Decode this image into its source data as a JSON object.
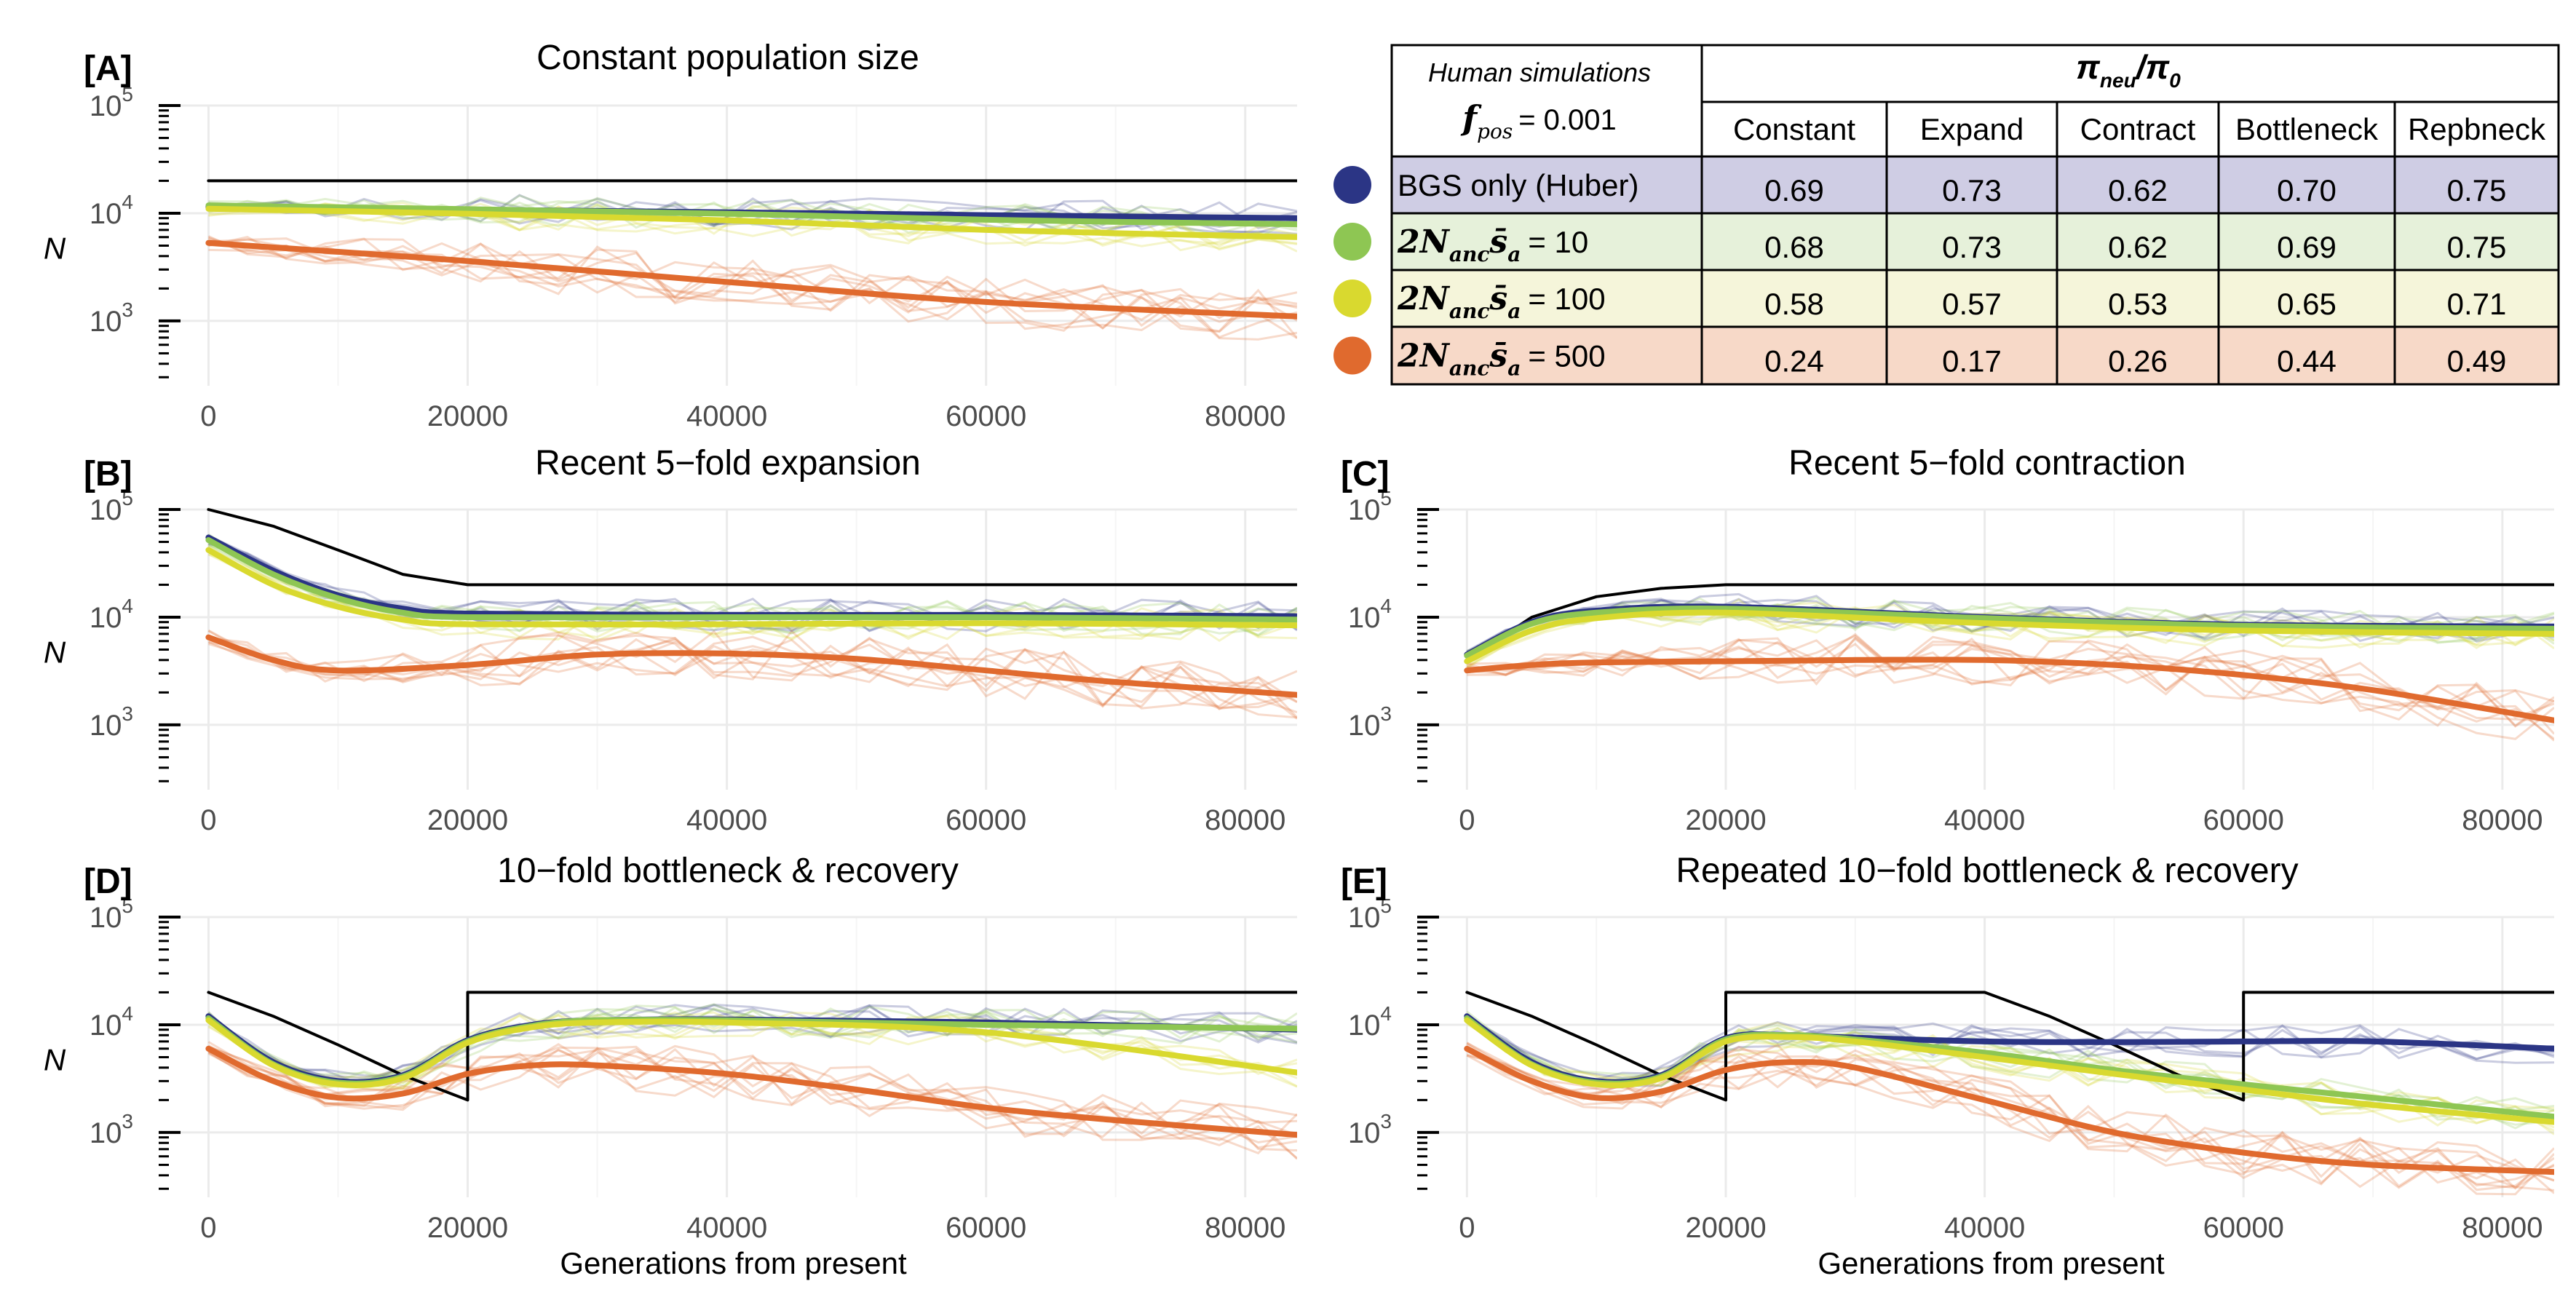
{
  "colors": {
    "bgs": "#2b3585",
    "s10": "#8ec653",
    "s100": "#d9d92f",
    "s500": "#e06a2e",
    "demography": "#000000",
    "row_bgs": "#cfcde4",
    "row_s10": "#e6f1da",
    "row_s100": "#f5f5da",
    "row_s500": "#f7d9c8"
  },
  "table": {
    "header_italic": "Human simulations",
    "fpos_symbol": "f",
    "fpos_sub": "pos",
    "fpos_value": "= 0.001",
    "ratio_num": "π",
    "ratio_num_sub": "neu",
    "ratio_sep": "/π",
    "ratio_den_sub": "0",
    "columns": [
      "Constant",
      "Expand",
      "Contract",
      "Bottleneck",
      "Repbneck"
    ],
    "rows": [
      {
        "key": "bgs",
        "label": "BGS only (Huber)",
        "values": [
          "0.69",
          "0.73",
          "0.62",
          "0.70",
          "0.75"
        ]
      },
      {
        "key": "s10",
        "label_main": "2N",
        "label_sub1": "anc",
        "label_mid": "s̄",
        "label_sub2": "a",
        "label_value": "= 10",
        "values": [
          "0.68",
          "0.73",
          "0.62",
          "0.69",
          "0.75"
        ]
      },
      {
        "key": "s100",
        "label_main": "2N",
        "label_sub1": "anc",
        "label_mid": "s̄",
        "label_sub2": "a",
        "label_value": "= 100",
        "values": [
          "0.58",
          "0.57",
          "0.53",
          "0.65",
          "0.71"
        ]
      },
      {
        "key": "s500",
        "label_main": "2N",
        "label_sub1": "anc",
        "label_mid": "s̄",
        "label_sub2": "a",
        "label_value": "= 500",
        "values": [
          "0.24",
          "0.17",
          "0.26",
          "0.44",
          "0.49"
        ]
      }
    ]
  },
  "chart_data": [
    {
      "id": "A",
      "label": "[A]",
      "title": "Constant population size",
      "type": "line",
      "xlabel": "",
      "ylabel": "N",
      "yscale": "log",
      "xlim": [
        -3000,
        84000
      ],
      "ylim": [
        250,
        100000
      ],
      "xticks": [
        0,
        20000,
        40000,
        60000,
        80000
      ],
      "series": [
        {
          "key": "demography",
          "x": [
            0,
            84000
          ],
          "y": [
            20000,
            20000
          ]
        },
        {
          "key": "bgs",
          "x": [
            0,
            20000,
            40000,
            60000,
            84000
          ],
          "y": [
            11500,
            10800,
            10200,
            9600,
            9000
          ]
        },
        {
          "key": "s10",
          "x": [
            0,
            20000,
            40000,
            60000,
            84000
          ],
          "y": [
            11800,
            10900,
            9900,
            8700,
            7900
          ]
        },
        {
          "key": "s100",
          "x": [
            0,
            20000,
            40000,
            60000,
            84000
          ],
          "y": [
            11000,
            9900,
            8600,
            7000,
            6000
          ]
        },
        {
          "key": "s500",
          "x": [
            0,
            20000,
            40000,
            60000,
            84000
          ],
          "y": [
            5300,
            3600,
            2300,
            1500,
            1100
          ]
        }
      ]
    },
    {
      "id": "B",
      "label": "[B]",
      "title": "Recent 5−fold expansion",
      "type": "line",
      "xlabel": "",
      "ylabel": "N",
      "yscale": "log",
      "xlim": [
        -3000,
        84000
      ],
      "ylim": [
        250,
        100000
      ],
      "xticks": [
        0,
        20000,
        40000,
        60000,
        80000
      ],
      "series": [
        {
          "key": "demography",
          "x": [
            0,
            5000,
            10000,
            15000,
            20000,
            84000
          ],
          "y": [
            100000,
            70000,
            42000,
            25000,
            20000,
            20000
          ]
        },
        {
          "key": "bgs",
          "x": [
            0,
            5000,
            10000,
            15000,
            20000,
            40000,
            60000,
            84000
          ],
          "y": [
            55000,
            27000,
            16000,
            12000,
            10800,
            10500,
            10500,
            10200
          ]
        },
        {
          "key": "s10",
          "x": [
            0,
            5000,
            10000,
            15000,
            20000,
            40000,
            60000,
            84000
          ],
          "y": [
            52000,
            25000,
            15000,
            11000,
            10000,
            10000,
            10000,
            9500
          ]
        },
        {
          "key": "s100",
          "x": [
            0,
            5000,
            10000,
            15000,
            20000,
            40000,
            60000,
            84000
          ],
          "y": [
            42000,
            20000,
            12500,
            9500,
            8600,
            8600,
            8800,
            8400
          ]
        },
        {
          "key": "s500",
          "x": [
            0,
            5000,
            10000,
            20000,
            30000,
            40000,
            50000,
            60000,
            70000,
            84000
          ],
          "y": [
            6500,
            4000,
            3200,
            3600,
            4500,
            4600,
            4100,
            3200,
            2500,
            1900
          ]
        }
      ]
    },
    {
      "id": "C",
      "label": "[C]",
      "title": "Recent 5−fold contraction",
      "type": "line",
      "xlabel": "",
      "ylabel": "",
      "yscale": "log",
      "xlim": [
        -3000,
        84000
      ],
      "ylim": [
        250,
        100000
      ],
      "xticks": [
        0,
        20000,
        40000,
        60000,
        80000
      ],
      "series": [
        {
          "key": "demography",
          "x": [
            0,
            5000,
            10000,
            15000,
            20000,
            84000
          ],
          "y": [
            4000,
            10000,
            15500,
            18500,
            20000,
            20000
          ]
        },
        {
          "key": "bgs",
          "x": [
            0,
            5000,
            10000,
            20000,
            40000,
            60000,
            84000
          ],
          "y": [
            4500,
            9000,
            11500,
            12500,
            10000,
            8500,
            8200
          ]
        },
        {
          "key": "s10",
          "x": [
            0,
            5000,
            10000,
            20000,
            40000,
            60000,
            84000
          ],
          "y": [
            4400,
            8700,
            11000,
            12000,
            9800,
            8300,
            7800
          ]
        },
        {
          "key": "s100",
          "x": [
            0,
            5000,
            10000,
            20000,
            40000,
            60000,
            84000
          ],
          "y": [
            3900,
            7500,
            9800,
            11000,
            8800,
            7500,
            7000
          ]
        },
        {
          "key": "s500",
          "x": [
            0,
            5000,
            10000,
            20000,
            30000,
            40000,
            50000,
            60000,
            70000,
            84000
          ],
          "y": [
            3200,
            3600,
            3800,
            3900,
            4000,
            4000,
            3600,
            2900,
            2100,
            1100
          ]
        }
      ]
    },
    {
      "id": "D",
      "label": "[D]",
      "title": "10−fold bottleneck & recovery",
      "type": "line",
      "xlabel": "Generations from present",
      "ylabel": "N",
      "yscale": "log",
      "xlim": [
        -3000,
        84000
      ],
      "ylim": [
        250,
        100000
      ],
      "xticks": [
        0,
        20000,
        40000,
        60000,
        80000
      ],
      "series": [
        {
          "key": "demography",
          "x": [
            0,
            5000,
            10000,
            15000,
            20000,
            20000,
            84000
          ],
          "y": [
            20000,
            12000,
            6500,
            3400,
            2000,
            20000,
            20000
          ]
        },
        {
          "key": "bgs",
          "x": [
            0,
            5000,
            10000,
            15000,
            20000,
            25000,
            30000,
            40000,
            60000,
            84000
          ],
          "y": [
            12000,
            4500,
            3000,
            3400,
            7200,
            10000,
            11000,
            11200,
            10500,
            9000
          ]
        },
        {
          "key": "s10",
          "x": [
            0,
            5000,
            10000,
            15000,
            20000,
            25000,
            30000,
            40000,
            60000,
            84000
          ],
          "y": [
            11500,
            4300,
            2900,
            3300,
            7000,
            9800,
            11000,
            11000,
            10000,
            9200
          ]
        },
        {
          "key": "s100",
          "x": [
            0,
            5000,
            10000,
            15000,
            20000,
            25000,
            30000,
            40000,
            60000,
            84000
          ],
          "y": [
            11000,
            4200,
            2800,
            3200,
            6800,
            9500,
            10500,
            10500,
            8500,
            3600
          ]
        },
        {
          "key": "s500",
          "x": [
            0,
            5000,
            10000,
            15000,
            20000,
            25000,
            30000,
            40000,
            50000,
            60000,
            70000,
            84000
          ],
          "y": [
            6000,
            3000,
            2100,
            2300,
            3500,
            4200,
            4200,
            3500,
            2500,
            1700,
            1300,
            950
          ]
        }
      ]
    },
    {
      "id": "E",
      "label": "[E]",
      "title": "Repeated 10−fold bottleneck & recovery",
      "type": "line",
      "xlabel": "Generations from present",
      "ylabel": "",
      "yscale": "log",
      "xlim": [
        -3000,
        84000
      ],
      "ylim": [
        250,
        100000
      ],
      "xticks": [
        0,
        20000,
        40000,
        60000,
        80000
      ],
      "series": [
        {
          "key": "demography",
          "x": [
            0,
            5000,
            10000,
            15000,
            20000,
            20000,
            40000,
            45000,
            50000,
            55000,
            60000,
            60000,
            84000
          ],
          "y": [
            20000,
            12000,
            6500,
            3400,
            2000,
            20000,
            20000,
            12000,
            6500,
            3400,
            2000,
            20000,
            20000
          ]
        },
        {
          "key": "bgs",
          "x": [
            0,
            5000,
            10000,
            15000,
            20000,
            25000,
            30000,
            40000,
            50000,
            60000,
            70000,
            84000
          ],
          "y": [
            12000,
            4500,
            3000,
            3400,
            7500,
            8000,
            7600,
            7000,
            6900,
            7000,
            7000,
            6000
          ]
        },
        {
          "key": "s10",
          "x": [
            0,
            5000,
            10000,
            15000,
            20000,
            25000,
            30000,
            40000,
            50000,
            60000,
            70000,
            84000
          ],
          "y": [
            11500,
            4300,
            2900,
            3300,
            7300,
            8000,
            7300,
            5500,
            3800,
            2800,
            2100,
            1400
          ]
        },
        {
          "key": "s100",
          "x": [
            0,
            5000,
            10000,
            15000,
            20000,
            25000,
            30000,
            40000,
            50000,
            60000,
            70000,
            84000
          ],
          "y": [
            11000,
            4200,
            2800,
            3200,
            7000,
            7700,
            7000,
            5000,
            3500,
            2500,
            1800,
            1250
          ]
        },
        {
          "key": "s500",
          "x": [
            0,
            5000,
            10000,
            15000,
            20000,
            25000,
            30000,
            40000,
            50000,
            60000,
            70000,
            84000
          ],
          "y": [
            6000,
            3000,
            2100,
            2400,
            3800,
            4500,
            4000,
            2000,
            1000,
            650,
            500,
            430
          ]
        }
      ]
    }
  ]
}
